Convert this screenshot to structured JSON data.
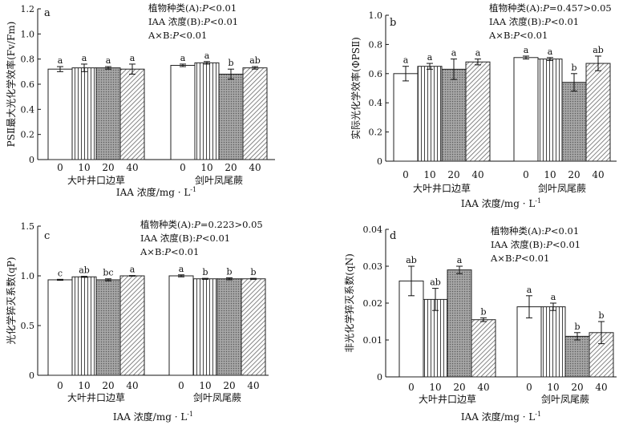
{
  "chart_data": [
    {
      "type": "bar",
      "panel_label": "a",
      "ylabel": "PSⅡ最大光化学效率(Fv/Fm)",
      "xlabel": "IAA 浓度/mg · L",
      "xlabel_sup": "-1",
      "ylim": [
        0,
        1.2
      ],
      "yticks": [
        "0",
        "0.2",
        "0.4",
        "0.6",
        "0.8",
        "1.0",
        "1.2"
      ],
      "ytick_values": [
        0,
        0.2,
        0.4,
        0.6,
        0.8,
        1.0,
        1.2
      ],
      "groups": [
        "大叶井口边草",
        "剑叶凤尾蕨"
      ],
      "categories": [
        "0",
        "10",
        "20",
        "40"
      ],
      "series": [
        {
          "group": "大叶井口边草",
          "values": [
            0.72,
            0.73,
            0.73,
            0.72
          ],
          "errors": [
            0.02,
            0.03,
            0.01,
            0.04
          ],
          "sig": [
            "a",
            "a",
            "a",
            "a"
          ]
        },
        {
          "group": "剑叶凤尾蕨",
          "values": [
            0.75,
            0.77,
            0.68,
            0.73
          ],
          "errors": [
            0.01,
            0.01,
            0.04,
            0.01
          ],
          "sig": [
            "a",
            "a",
            "b",
            "ab"
          ]
        }
      ],
      "stats": [
        {
          "prefix": "植物种类(A):",
          "p": "P",
          "rest": "<0.01"
        },
        {
          "prefix": "IAA 浓度(B):",
          "p": "P",
          "rest": "<0.01"
        },
        {
          "prefix": "A×B:",
          "p": "P",
          "rest": "<0.01"
        }
      ]
    },
    {
      "type": "bar",
      "panel_label": "b",
      "ylabel": "实际光化学效率(ΦPSⅡ)",
      "xlabel": "IAA 浓度/mg · L",
      "xlabel_sup": "-1",
      "ylim": [
        0,
        1.0
      ],
      "yticks": [
        "0",
        "0.2",
        "0.4",
        "0.6",
        "0.8",
        "1.0"
      ],
      "ytick_values": [
        0,
        0.2,
        0.4,
        0.6,
        0.8,
        1.0
      ],
      "groups": [
        "大叶井口边草",
        "剑叶凤尾蕨"
      ],
      "categories": [
        "0",
        "10",
        "20",
        "40"
      ],
      "series": [
        {
          "group": "大叶井口边草",
          "values": [
            0.6,
            0.65,
            0.63,
            0.68
          ],
          "errors": [
            0.05,
            0.02,
            0.07,
            0.02
          ],
          "sig": [
            "a",
            "a",
            "a",
            "a"
          ]
        },
        {
          "group": "剑叶凤尾蕨",
          "values": [
            0.71,
            0.7,
            0.54,
            0.67
          ],
          "errors": [
            0.01,
            0.01,
            0.06,
            0.05
          ],
          "sig": [
            "a",
            "a",
            "b",
            "ab"
          ]
        }
      ],
      "stats": [
        {
          "prefix": "植物种类(A):",
          "p": "P",
          "rest": "=0.457>0.05"
        },
        {
          "prefix": "IAA 浓度(B):",
          "p": "P",
          "rest": "<0.01"
        },
        {
          "prefix": "A×B:",
          "p": "P",
          "rest": "<0.01"
        }
      ]
    },
    {
      "type": "bar",
      "panel_label": "c",
      "ylabel": "光化学猝灭系数(qP)",
      "xlabel": "IAA 浓度/mg · L",
      "xlabel_sup": "-1",
      "ylim": [
        0,
        1.5
      ],
      "yticks": [
        "0",
        "0.5",
        "1.0",
        "1.5"
      ],
      "ytick_values": [
        0,
        0.5,
        1.0,
        1.5
      ],
      "groups": [
        "大叶井口边草",
        "剑叶凤尾蕨"
      ],
      "categories": [
        "0",
        "10",
        "20",
        "40"
      ],
      "series": [
        {
          "group": "大叶井口边草",
          "values": [
            0.96,
            0.99,
            0.96,
            1.0
          ],
          "errors": [
            0.005,
            0.005,
            0.01,
            0.003
          ],
          "sig": [
            "c",
            "ab",
            "bc",
            "a"
          ]
        },
        {
          "group": "剑叶凤尾蕨",
          "values": [
            1.0,
            0.97,
            0.97,
            0.97
          ],
          "errors": [
            0.01,
            0.005,
            0.01,
            0.005
          ],
          "sig": [
            "a",
            "b",
            "b",
            "b"
          ]
        }
      ],
      "stats": [
        {
          "prefix": "植物种类(A):",
          "p": "P",
          "rest": "=0.223>0.05"
        },
        {
          "prefix": "IAA 浓度(B):",
          "p": "P",
          "rest": "<0.01"
        },
        {
          "prefix": "A×B:",
          "p": "P",
          "rest": "<0.01"
        }
      ]
    },
    {
      "type": "bar",
      "panel_label": "d",
      "ylabel": "非光化学猝灭系数(qN)",
      "xlabel": "IAA 浓度/mg · L",
      "xlabel_sup": "-1",
      "ylim": [
        0,
        0.04
      ],
      "yticks": [
        "0",
        "0.01",
        "0.02",
        "0.03",
        "0.04"
      ],
      "ytick_values": [
        0,
        0.01,
        0.02,
        0.03,
        0.04
      ],
      "groups": [
        "大叶井口边草",
        "剑叶凤尾蕨"
      ],
      "categories": [
        "0",
        "10",
        "20",
        "40"
      ],
      "series": [
        {
          "group": "大叶井口边草",
          "values": [
            0.026,
            0.021,
            0.029,
            0.0155
          ],
          "errors": [
            0.004,
            0.003,
            0.001,
            0.0005
          ],
          "sig": [
            "ab",
            "ab",
            "a",
            "b"
          ]
        },
        {
          "group": "剑叶凤尾蕨",
          "values": [
            0.019,
            0.019,
            0.011,
            0.012
          ],
          "errors": [
            0.003,
            0.001,
            0.001,
            0.003
          ],
          "sig": [
            "a",
            "a",
            "b",
            "b"
          ]
        }
      ],
      "stats": [
        {
          "prefix": "植物种类(A):",
          "p": "P",
          "rest": "<0.01"
        },
        {
          "prefix": "IAA 浓度(B):",
          "p": "P",
          "rest": "<0.01"
        },
        {
          "prefix": "A×B:",
          "p": "P",
          "rest": "<0.01"
        }
      ]
    }
  ]
}
